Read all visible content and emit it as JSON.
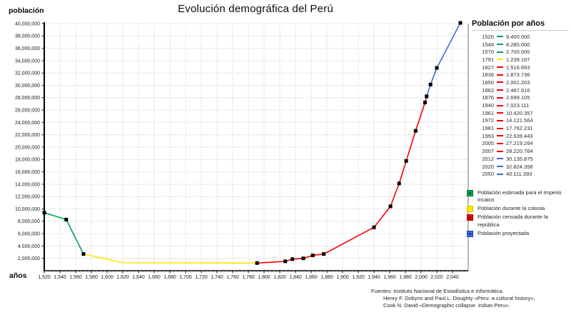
{
  "page": {
    "title": "Evolución demográfica del Perú",
    "y_axis_title": "población",
    "x_axis_title": "años"
  },
  "colors": {
    "incaico": "#00a651",
    "colonia": "#ffe600",
    "republica": "#f40000",
    "proyectada": "#4169e1",
    "incaico_border": "#00762f",
    "colonia_border": "#d9c300",
    "republica_border": "#a30000",
    "proyectada_border": "#22409e",
    "marker": "#000000",
    "grid": "#b3b3b3",
    "axis": "#000000",
    "plot_border": "#8c8c8c"
  },
  "chart_data": {
    "type": "line",
    "title": "Evolución demográfica del Perú",
    "xlabel": "años",
    "ylabel": "población",
    "xlim": [
      1520,
      2060
    ],
    "ylim": [
      0,
      40000000
    ],
    "grid": true,
    "legend_position": "right",
    "x_ticks": [
      1520,
      1540,
      1560,
      1580,
      1600,
      1620,
      1640,
      1660,
      1680,
      1700,
      1720,
      1740,
      1760,
      1780,
      1800,
      1820,
      1840,
      1860,
      1880,
      1900,
      1920,
      1940,
      1960,
      1980,
      2000,
      2020,
      2040
    ],
    "y_ticks": [
      2000000,
      4000000,
      6000000,
      8000000,
      10000000,
      12000000,
      14000000,
      16000000,
      18000000,
      20000000,
      22000000,
      24000000,
      26000000,
      28000000,
      30000000,
      32000000,
      34000000,
      36000000,
      38000000,
      40000000
    ],
    "series": [
      {
        "key": "incaico",
        "name": "Población estimada para el Imperio incaico",
        "color": "#00a651",
        "points": [
          [
            1520,
            9400000
          ],
          [
            1548,
            8285000
          ],
          [
            1570,
            2700000
          ]
        ]
      },
      {
        "key": "colonia",
        "name": "Población durante la colonia",
        "color": "#ffe600",
        "points": [
          [
            1570,
            2700000
          ],
          [
            1620,
            1300000
          ],
          [
            1791,
            1239197
          ]
        ]
      },
      {
        "key": "republica",
        "name": "Población censada durante la república",
        "color": "#f40000",
        "points": [
          [
            1791,
            1239197
          ],
          [
            1827,
            1516693
          ],
          [
            1836,
            1873736
          ],
          [
            1850,
            2001203
          ],
          [
            1862,
            2487916
          ],
          [
            1876,
            2699105
          ],
          [
            1940,
            7023111
          ],
          [
            1961,
            10420357
          ],
          [
            1972,
            14121564
          ],
          [
            1981,
            17762231
          ],
          [
            1993,
            22639443
          ],
          [
            2005,
            27219264
          ],
          [
            2007,
            28220764
          ]
        ]
      },
      {
        "key": "proyectada",
        "name": "Población proyectada",
        "color": "#4169e1",
        "points": [
          [
            2007,
            28220764
          ],
          [
            2012,
            30135875
          ],
          [
            2020,
            32824358
          ],
          [
            2050,
            40111393
          ]
        ]
      }
    ]
  },
  "legend_panel": {
    "header": "Población por años",
    "entries": [
      {
        "year": "1520",
        "value": "9.400.000",
        "color": "#00a651"
      },
      {
        "year": "1548",
        "value": "8.285.000",
        "color": "#00a651"
      },
      {
        "year": "1570",
        "value": "2.700.000",
        "color": "#00a651"
      },
      {
        "year": "1791",
        "value": "1.239.197",
        "color": "#ffe600"
      },
      {
        "year": "1827",
        "value": "1.516.693",
        "color": "#f40000"
      },
      {
        "year": "1836",
        "value": "1.873.736",
        "color": "#f40000"
      },
      {
        "year": "1850",
        "value": "2.001.203",
        "color": "#f40000"
      },
      {
        "year": "1862",
        "value": "2.487.916",
        "color": "#f40000"
      },
      {
        "year": "1876",
        "value": "2.699.105",
        "color": "#f40000"
      },
      {
        "year": "1940",
        "value": "7.023.111",
        "color": "#f40000"
      },
      {
        "year": "1961",
        "value": "10.420.357",
        "color": "#f40000"
      },
      {
        "year": "1972",
        "value": "14.121.564",
        "color": "#f40000"
      },
      {
        "year": "1981",
        "value": "17.762.231",
        "color": "#f40000"
      },
      {
        "year": "1993",
        "value": "22.639.443",
        "color": "#f40000"
      },
      {
        "year": "2005",
        "value": "27.219.264",
        "color": "#f40000"
      },
      {
        "year": "2007",
        "value": "28.220.764",
        "color": "#f40000"
      },
      {
        "year": "2012",
        "value": "30.135.875",
        "color": "#4169e1"
      },
      {
        "year": "2020",
        "value": "32.824.358",
        "color": "#4169e1"
      },
      {
        "year": "2050",
        "value": "40.111.393",
        "color": "#4169e1"
      }
    ]
  },
  "color_legend": [
    {
      "label": "Población estimada para el Imperio incaico",
      "color": "#00a651",
      "border": "#00762f",
      "dot": true
    },
    {
      "label": "Población durante la colonia",
      "color": "#ffe600",
      "border": "#d9c300",
      "dot": false
    },
    {
      "label": "Población censada durante la república",
      "color": "#f40000",
      "border": "#a30000",
      "dot": true
    },
    {
      "label": "Población proyectada",
      "color": "#4169e1",
      "border": "#22409e",
      "dot": true
    }
  ],
  "sources": {
    "lines": [
      "Fuentes: Instituto Nacional de Estadística e Informática,",
      "Henry F. Dobyns and Paul L. Doughty «Peru: a cultural history»,",
      "Cook N. David «Demographic collapse. Indian Peru»."
    ]
  }
}
